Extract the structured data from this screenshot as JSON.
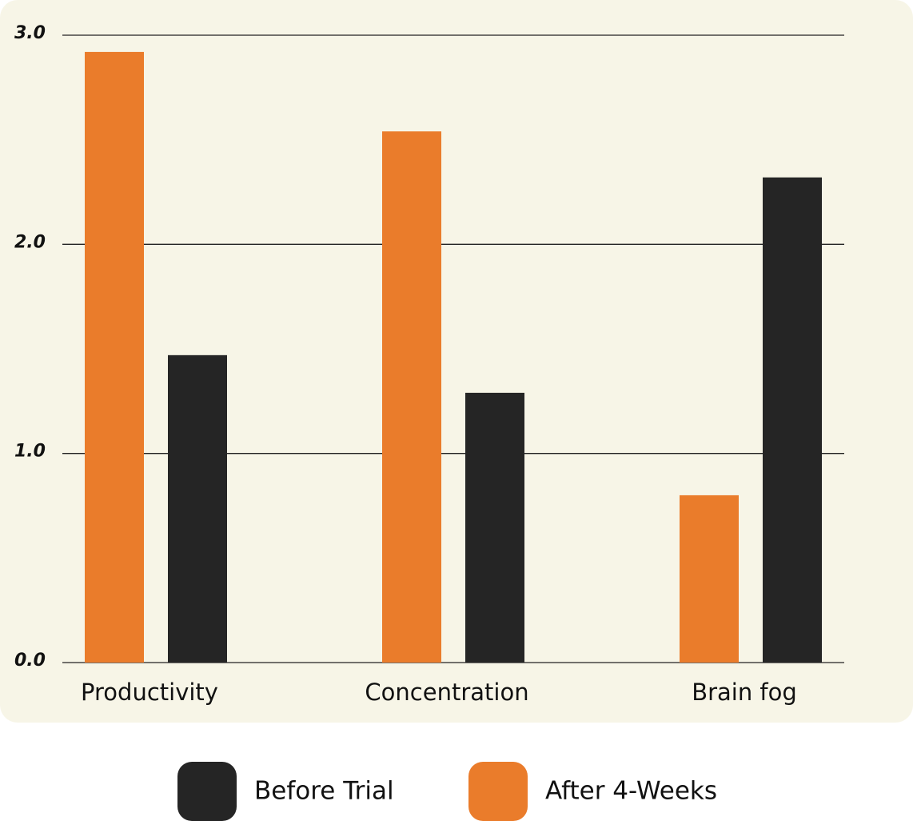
{
  "chart_data": {
    "type": "bar",
    "categories": [
      "Productivity",
      "Concentration",
      "Brain fog"
    ],
    "series": [
      {
        "name": "Before Trial",
        "color": "#252525",
        "values": [
          1.47,
          1.29,
          2.32
        ]
      },
      {
        "name": "After 4-Weeks",
        "color": "#ea7c2b",
        "values": [
          2.92,
          2.54,
          0.8
        ]
      }
    ],
    "ylim": [
      0,
      3
    ],
    "yticks": [
      {
        "value": 0,
        "label": "0.0"
      },
      {
        "value": 1,
        "label": "1.0"
      },
      {
        "value": 2,
        "label": "2.0"
      },
      {
        "value": 3,
        "label": "3.0"
      }
    ],
    "grid": true
  }
}
